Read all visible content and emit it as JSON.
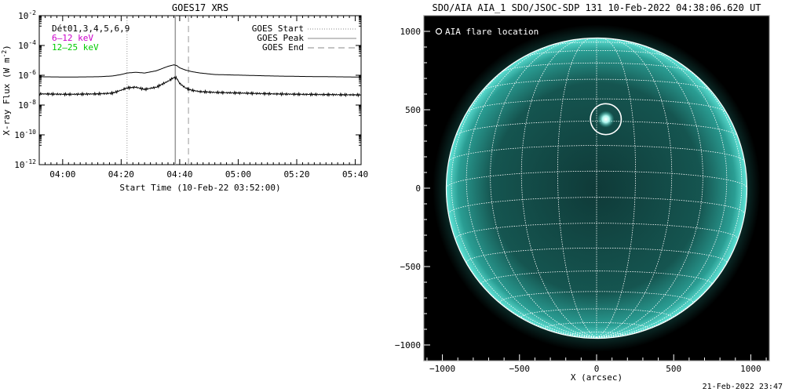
{
  "chart_data": [
    {
      "type": "line",
      "title": "GOES17 XRS",
      "xlabel": "Start Time (10-Feb-22 03:52:00)",
      "ylabel_text": "X-ray Flux (W m",
      "ylabel_sup": "-2",
      "ylabel_close": ")",
      "x_ticks": [
        "04:00",
        "04:20",
        "04:40",
        "05:00",
        "05:20",
        "05:40"
      ],
      "x_tick_minutes": [
        8,
        28,
        48,
        68,
        88,
        108
      ],
      "xlim_minutes": [
        0,
        110
      ],
      "y_scale": "log",
      "ylim": [
        1e-12,
        0.01
      ],
      "y_ticks": [
        {
          "base": "10",
          "exp": "-2",
          "value": -2
        },
        {
          "base": "10",
          "exp": "-4",
          "value": -4
        },
        {
          "base": "10",
          "exp": "-6",
          "value": -6
        },
        {
          "base": "10",
          "exp": "-8",
          "value": -8
        },
        {
          "base": "10",
          "exp": "-10",
          "value": -10
        },
        {
          "base": "10",
          "exp": "-12",
          "value": -12
        }
      ],
      "detector_label": "Dét01,3,4,5,6,9",
      "legend_left": [
        {
          "text": "6–12 keV",
          "color": "#cc00cc"
        },
        {
          "text": "12–25 keV",
          "color": "#00cc00"
        }
      ],
      "legend_right": [
        {
          "text": "GOES Start",
          "style": "dotted"
        },
        {
          "text": "GOES Peak",
          "style": "solid"
        },
        {
          "text": "GOES End",
          "style": "dashed"
        }
      ],
      "markers_minutes": {
        "start": 30,
        "peak": 46.5,
        "end": 51
      },
      "series": [
        {
          "band": "long",
          "x": [
            0,
            10,
            20,
            25,
            28,
            30,
            33,
            36,
            40,
            44,
            46,
            47,
            48,
            50,
            52,
            55,
            60,
            70,
            80,
            90,
            100,
            110
          ],
          "log_y": [
            -6.1,
            -6.12,
            -6.1,
            -6.05,
            -5.95,
            -5.85,
            -5.8,
            -5.85,
            -5.7,
            -5.4,
            -5.3,
            -5.35,
            -5.5,
            -5.65,
            -5.75,
            -5.85,
            -5.95,
            -6.0,
            -6.05,
            -6.08,
            -6.1,
            -6.12
          ]
        },
        {
          "band": "short",
          "x": [
            0,
            10,
            20,
            25,
            28,
            30,
            33,
            36,
            40,
            44,
            46,
            47,
            48,
            50,
            52,
            55,
            60,
            70,
            80,
            90,
            100,
            110
          ],
          "log_y": [
            -7.25,
            -7.28,
            -7.25,
            -7.2,
            -7.0,
            -6.85,
            -6.8,
            -6.95,
            -6.8,
            -6.4,
            -6.15,
            -6.2,
            -6.55,
            -6.85,
            -7.0,
            -7.1,
            -7.15,
            -7.2,
            -7.25,
            -7.28,
            -7.3,
            -7.32
          ]
        }
      ]
    },
    {
      "type": "image",
      "title": "SDO/AIA AIA_1 SDO/JSOC-SDP 131 10-Feb-2022 04:38:06.620 UT",
      "xlabel": "X (arcsec)",
      "x_ticks": [
        -1000,
        -500,
        0,
        500,
        1000
      ],
      "y_ticks": [
        1000,
        500,
        0,
        -500,
        -1000
      ],
      "xlim": [
        -1120,
        1120
      ],
      "ylim": [
        -1100,
        1100
      ],
      "solar_radius_arcsec": 975,
      "legend": "AIA flare location",
      "flare_location": {
        "x": 60,
        "y": 440
      },
      "flare_circle_radius_arcsec": 100,
      "disk_color": "#2bb5a8",
      "background": "#000000"
    }
  ],
  "footer": {
    "timestamp": "21-Feb-2022 23:47"
  }
}
